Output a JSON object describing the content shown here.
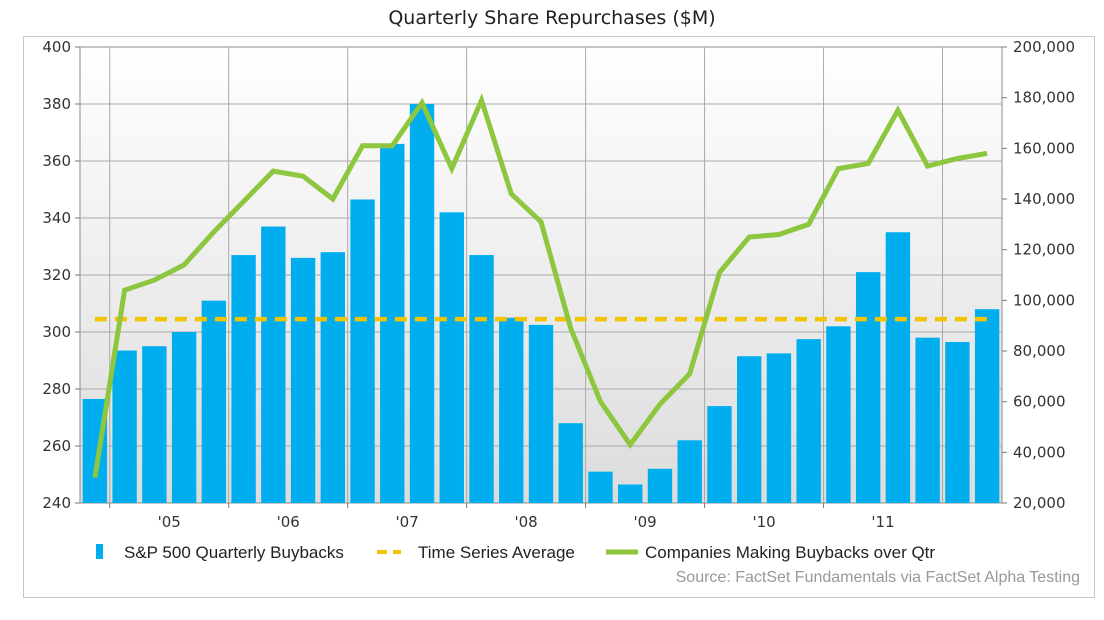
{
  "chart_data": {
    "type": "bar",
    "title": "Quarterly Share Repurchases ($M)",
    "xlabel": "",
    "ylabel": "",
    "y2label": "",
    "ylim": [
      240,
      400
    ],
    "y2lim": [
      20000,
      200000
    ],
    "yticks": [
      "400",
      "380",
      "360",
      "340",
      "320",
      "300",
      "280",
      "260",
      "240"
    ],
    "y2ticks": [
      "200,000",
      "180,000",
      "160,000",
      "140,000",
      "120,000",
      "100,000",
      "80,000",
      "60,000",
      "40,000",
      "20,000"
    ],
    "year_labels": [
      "'05",
      "'06",
      "'07",
      "'08",
      "'09",
      "'10",
      "'11"
    ],
    "grid": true,
    "legend_position": "bottom",
    "series": [
      {
        "name": "S&P 500 Quarterly Buybacks",
        "type": "bar",
        "axis": "left",
        "color": "#00aeef",
        "values": [
          276.5,
          293.5,
          295,
          300,
          311,
          327,
          337,
          326,
          328,
          346.5,
          366,
          380,
          342,
          327,
          305,
          302.5,
          268,
          251,
          246.5,
          252,
          262,
          274,
          291.5,
          292.5,
          297.5,
          302,
          321,
          335,
          298,
          296.5,
          308
        ]
      },
      {
        "name": "Time Series Average",
        "type": "line",
        "style": "dashed",
        "axis": "left",
        "color": "#f5c400",
        "values": [
          304.5,
          304.5,
          304.5,
          304.5,
          304.5,
          304.5,
          304.5,
          304.5,
          304.5,
          304.5,
          304.5,
          304.5,
          304.5,
          304.5,
          304.5,
          304.5,
          304.5,
          304.5,
          304.5,
          304.5,
          304.5,
          304.5,
          304.5,
          304.5,
          304.5,
          304.5,
          304.5,
          304.5,
          304.5,
          304.5,
          304.5
        ]
      },
      {
        "name": "Companies Making Buybacks over Qtr",
        "type": "line",
        "axis": "right",
        "color": "#8dc63f",
        "values": [
          30000,
          104000,
          108000,
          114000,
          127000,
          139000,
          151000,
          149000,
          140000,
          161000,
          161000,
          178000,
          152000,
          179000,
          142000,
          131000,
          89000,
          60000,
          43000,
          59000,
          71000,
          111000,
          125000,
          126000,
          130000,
          152000,
          154000,
          175000,
          153000,
          156000,
          158000
        ]
      }
    ]
  },
  "source": "Source: FactSet Fundamentals via FactSet Alpha Testing"
}
